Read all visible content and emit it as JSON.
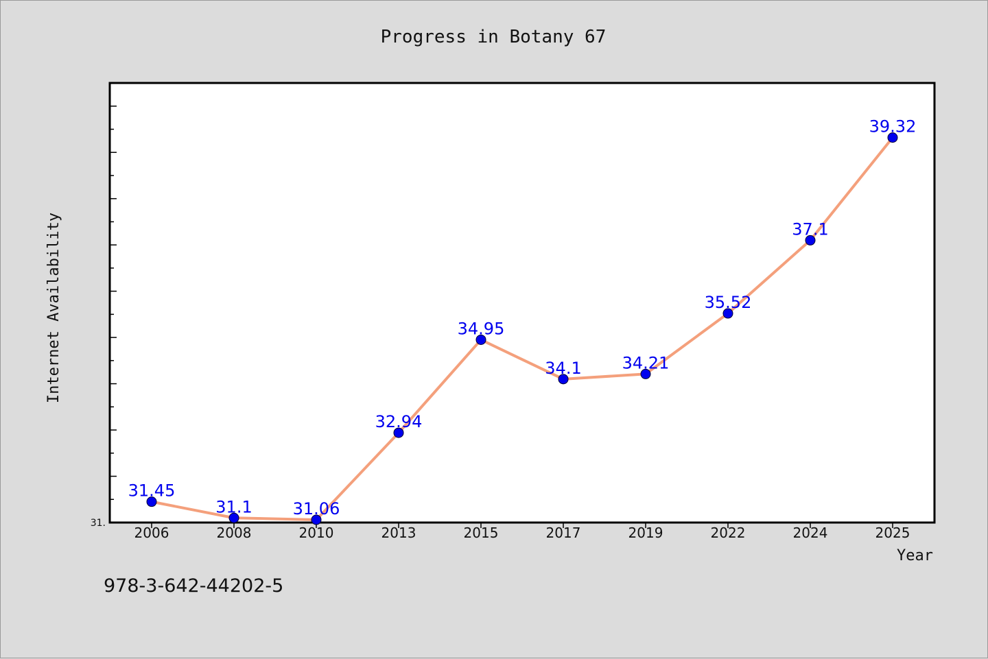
{
  "chart_data": {
    "type": "line",
    "title": "Progress in Botany 67",
    "xlabel": "Year",
    "ylabel": "Internet Availability",
    "categories": [
      "2006",
      "2008",
      "2010",
      "2013",
      "2015",
      "2017",
      "2019",
      "2022",
      "2024",
      "2025"
    ],
    "series": [
      {
        "values": [
          31.45,
          31.1,
          31.06,
          32.94,
          34.95,
          34.1,
          34.21,
          35.52,
          37.1,
          39.32
        ],
        "labels": [
          "31.45",
          "31.1",
          "31.06",
          "32.94",
          "34.95",
          "34.1",
          "34.21",
          "35.52",
          "37.1",
          "39.32"
        ],
        "line_color": "#f4a07c",
        "marker_color": "#0000ee"
      }
    ],
    "ylim": [
      31.0,
      40.5
    ],
    "ytick_label": "31.",
    "grid": false,
    "legend": "none"
  },
  "footer": {
    "isbn": "978-3-642-44202-5"
  },
  "colors": {
    "background": "#dcdcdc",
    "plot_background": "#ffffff",
    "line": "#f4a07c",
    "marker": "#0000ee",
    "data_label": "#0000ee"
  }
}
